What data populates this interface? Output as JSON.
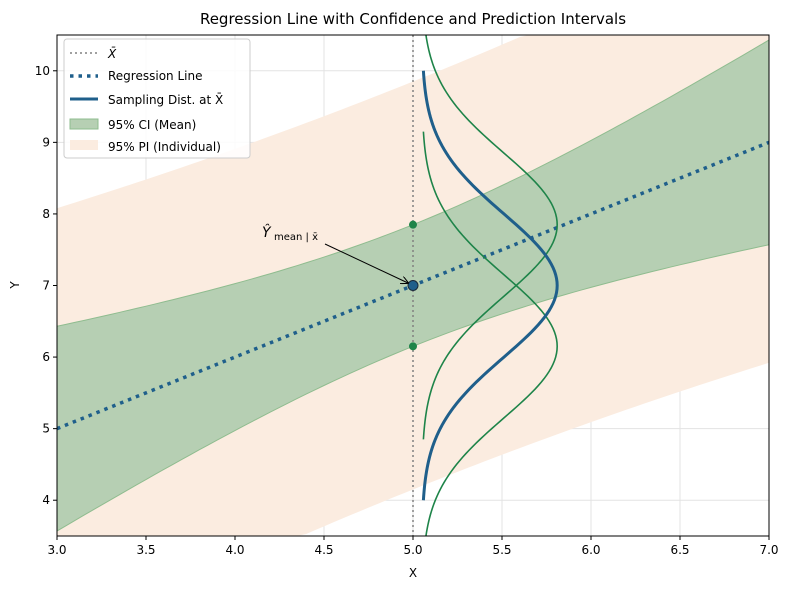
{
  "chart_data": {
    "type": "line",
    "title": "Regression Line with Confidence and Prediction Intervals",
    "xlabel": "X",
    "ylabel": "Y",
    "xlim": [
      3.0,
      7.0
    ],
    "ylim": [
      3.5,
      10.5
    ],
    "xticks": [
      "3.0",
      "3.5",
      "4.0",
      "4.5",
      "5.0",
      "5.5",
      "6.0",
      "6.5",
      "7.0"
    ],
    "yticks": [
      "4",
      "5",
      "6",
      "7",
      "8",
      "9",
      "10"
    ],
    "grid": true,
    "legend_position": "top-left",
    "x_mean": 5.0,
    "regression": {
      "intercept": 2.0,
      "slope": 1.0
    },
    "ci_halfwidth_at_mean": 0.85,
    "ci_halfwidth_at_edges": 1.43,
    "pi_halfwidth_at_mean": 2.85,
    "pi_halfwidth_at_edges": 3.08,
    "point_mean": {
      "x": 5.0,
      "y": 7.0
    },
    "ci_points": [
      {
        "x": 5.0,
        "y": 7.85
      },
      {
        "x": 5.0,
        "y": 6.15
      }
    ],
    "sampling_curves": {
      "base_x": 5.05,
      "peak_width": 0.76,
      "sd": 1.0,
      "span_sd": 3,
      "centers_blue": [
        7.0
      ],
      "centers_green": [
        7.85,
        6.15
      ]
    },
    "legend": [
      {
        "label": "X̄",
        "style": "dotted-gray"
      },
      {
        "label": "Regression Line",
        "style": "dotted-blue"
      },
      {
        "label": "Sampling Dist. at X̄",
        "style": "solid-blue"
      },
      {
        "label": "95% CI (Mean)",
        "style": "green-fill"
      },
      {
        "label": "95% PI (Individual)",
        "style": "peach-fill"
      }
    ],
    "annotation": {
      "text": "Ŷ",
      "subscript": "mean | x̄"
    },
    "colors": {
      "blue": "#1f5f8b",
      "green": "#1e8449",
      "ci_fill": "#b6cfb3",
      "ci_edge": "#8fbc8f",
      "pi_fill": "#fbece0",
      "mean_line": "#808080"
    }
  }
}
